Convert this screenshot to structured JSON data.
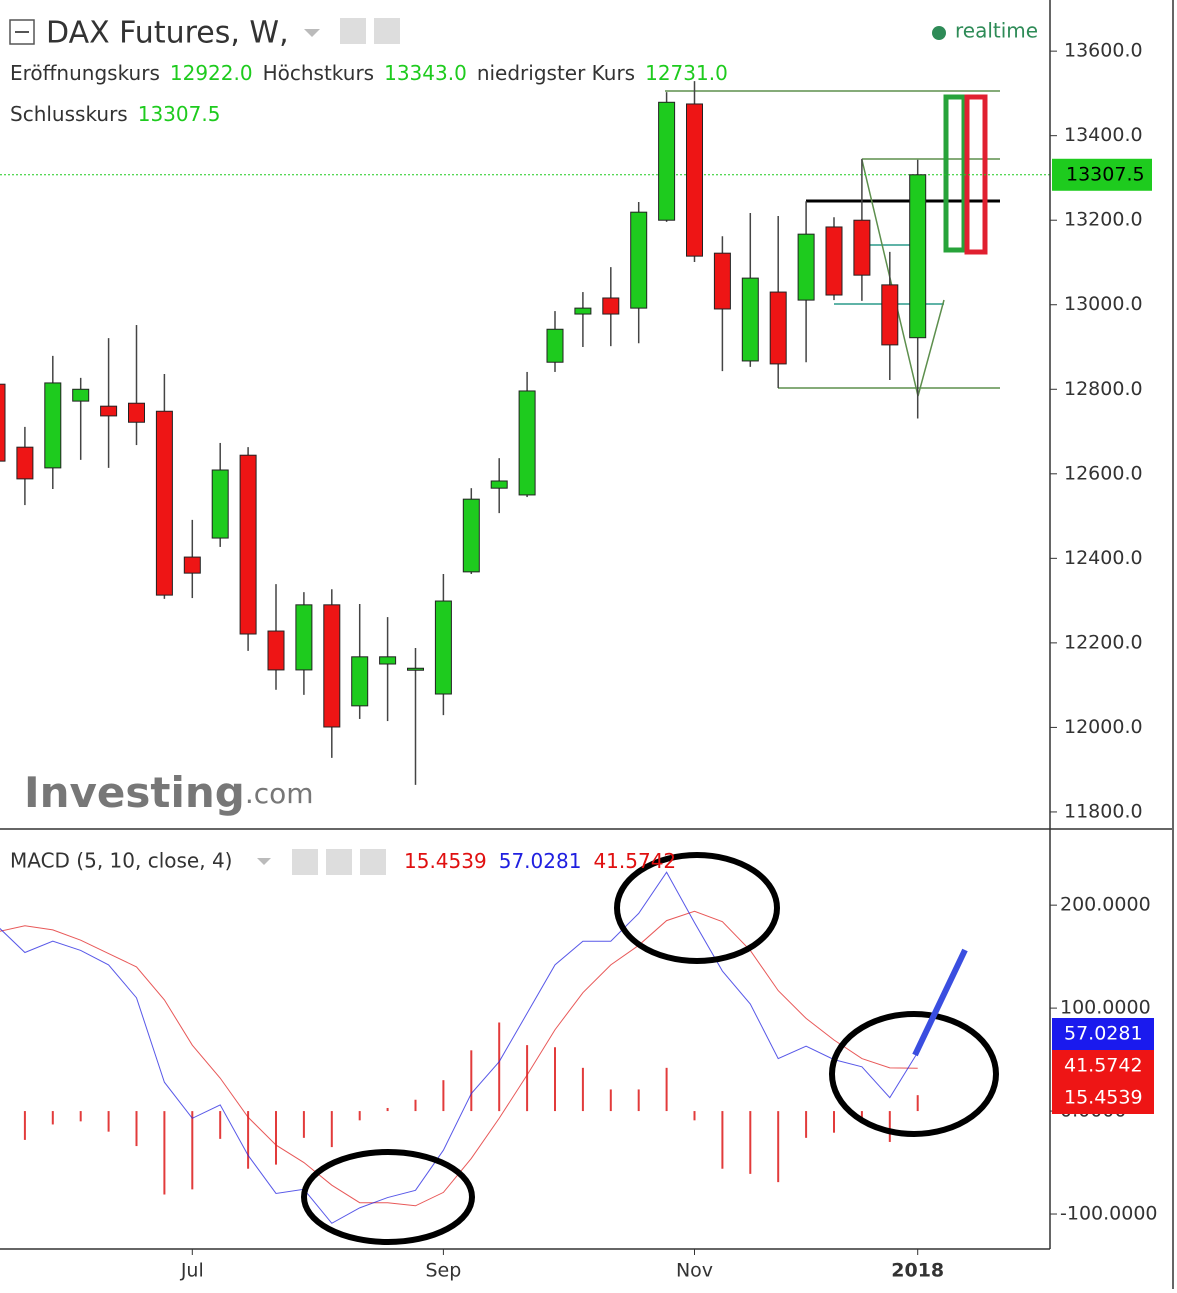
{
  "chart_data": [
    {
      "type": "candlestick",
      "title": "DAX Futures, W,",
      "status": "realtime",
      "header": [
        {
          "label": "Eröffnungskurs",
          "value": "12922.0"
        },
        {
          "label": "Höchstkurs",
          "value": "13343.0"
        },
        {
          "label": "niedrigster Kurs",
          "value": "12731.0"
        },
        {
          "label": "Schlusskurs",
          "value": "13307.5"
        }
      ],
      "watermark": [
        "Investing",
        ".com"
      ],
      "categories": [
        null,
        null,
        null,
        null,
        null,
        null,
        null,
        "Jul",
        null,
        null,
        null,
        null,
        null,
        null,
        null,
        null,
        "Sep",
        null,
        null,
        null,
        null,
        null,
        null,
        null,
        null,
        "Nov",
        null,
        null,
        null,
        null,
        null,
        null,
        null,
        "2018"
      ],
      "open": [
        12812,
        12663,
        12614,
        12772,
        12760,
        12767,
        12748,
        12403,
        12448,
        12644,
        12228,
        12136,
        12290,
        12051,
        12150,
        12138,
        12079,
        12368,
        12566,
        12550,
        12864,
        12978,
        13016,
        12992,
        13200,
        13475,
        13122,
        12867,
        13030,
        13011,
        13184,
        13200,
        13047,
        12922
      ],
      "high": [
        12850,
        12711,
        12879,
        12827,
        12921,
        12952,
        12836,
        12491,
        12673,
        12663,
        12339,
        12320,
        12327,
        12292,
        12261,
        12188,
        12363,
        12566,
        12637,
        12841,
        12985,
        13030,
        13089,
        13243,
        13503,
        13529,
        13162,
        13217,
        13210,
        13245,
        13207,
        13345,
        13125,
        13343
      ],
      "low": [
        12600,
        12526,
        12564,
        12633,
        12614,
        12668,
        12304,
        12306,
        12427,
        12181,
        12089,
        12077,
        11928,
        12020,
        12015,
        11864,
        12029,
        12363,
        12507,
        12545,
        12841,
        12900,
        12902,
        12909,
        13196,
        13101,
        12843,
        12853,
        12803,
        12864,
        13011,
        13009,
        12822,
        12731
      ],
      "close": [
        12630,
        12588,
        12815,
        12800,
        12737,
        12722,
        12313,
        12365,
        12609,
        12221,
        12136,
        12290,
        12001,
        12167,
        12167,
        12140,
        12299,
        12540,
        12583,
        12796,
        12942,
        12992,
        12978,
        13219,
        13479,
        13115,
        12990,
        13063,
        12860,
        13167,
        13023,
        13070,
        12905,
        13307.5
      ],
      "up_color": "#1ecb1e",
      "down_color": "#ee1515",
      "ylim": [
        11762,
        13721
      ],
      "yticks": [
        {
          "value": 11800,
          "label": "11800.0"
        },
        {
          "value": 12000,
          "label": "12000.0"
        },
        {
          "value": 12200,
          "label": "12200.0"
        },
        {
          "value": 12400,
          "label": "12400.0"
        },
        {
          "value": 12600,
          "label": "12600.0"
        },
        {
          "value": 12800,
          "label": "12800.0"
        },
        {
          "value": 13000,
          "label": "13000.0"
        },
        {
          "value": 13200,
          "label": "13200.0"
        },
        {
          "value": 13400,
          "label": "13400.0"
        },
        {
          "value": 13600,
          "label": "13600.0"
        }
      ],
      "grid": false
    },
    {
      "type": "macd",
      "title": "MACD (5, 10, close, 4)",
      "histogram": {
        "color": "#e23b3b",
        "values": [
          -6,
          -28,
          -13,
          -10,
          -20,
          -34,
          -81,
          -76,
          -27,
          -56,
          -52,
          -26,
          -35,
          -9,
          3,
          11,
          30,
          59,
          86,
          64,
          62,
          42,
          21,
          21,
          42,
          -9,
          -56,
          -61,
          -69,
          -26,
          -21,
          -9,
          -30,
          15.4539
        ]
      },
      "macd": {
        "color": "#2020e0",
        "values": [
          180,
          154,
          165,
          156,
          142,
          110,
          28,
          -7,
          6,
          -43,
          -80,
          -76,
          -109,
          -94,
          -84,
          -77,
          -38,
          17,
          48,
          95,
          142,
          165,
          165,
          192,
          232,
          183,
          136,
          104,
          51,
          63,
          50,
          43,
          13,
          57.0281
        ]
      },
      "signal": {
        "color": "#e02020",
        "values": [
          174,
          180,
          176,
          166,
          153,
          140,
          108,
          64,
          32,
          -6,
          -33,
          -50,
          -72,
          -89,
          -89,
          -92,
          -79,
          -46,
          -7,
          35,
          79,
          115,
          142,
          161,
          185,
          194,
          184,
          156,
          117,
          90,
          69,
          51,
          42,
          41.5742
        ]
      },
      "ylim": [
        -133,
        273
      ],
      "yticks": [
        {
          "value": -100,
          "label": "-100.0000"
        },
        {
          "value": 0,
          "label": "0.0000"
        },
        {
          "value": 100,
          "label": "100.0000"
        },
        {
          "value": 200,
          "label": "200.0000"
        }
      ],
      "grid": false
    }
  ]
}
